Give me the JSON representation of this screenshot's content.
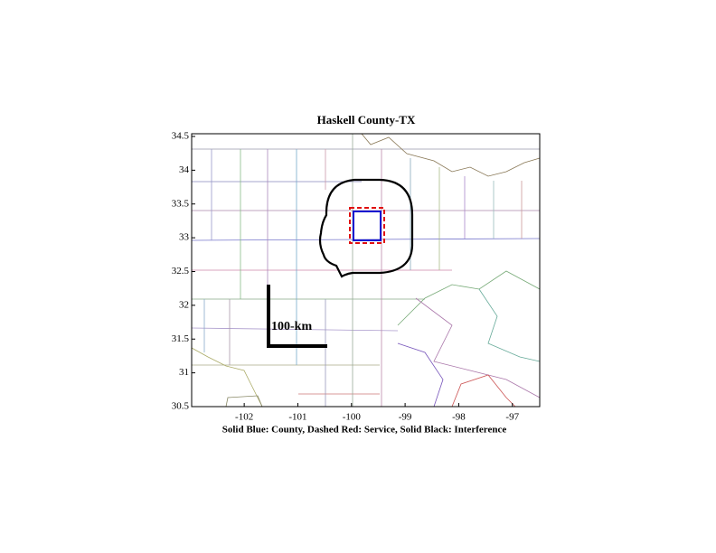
{
  "chart_data": {
    "type": "map",
    "title": "Haskell County-TX",
    "xlabel": "Solid Blue: County, Dashed Red: Service, Solid Black: Interference",
    "scale_label": "100-km",
    "xlim": [
      -102.98,
      -96.49
    ],
    "xticks": [
      -102,
      -101,
      -100,
      -99,
      -98,
      -97
    ],
    "ylim": [
      30.5,
      34.54
    ],
    "yticks": [
      30.5,
      31,
      31.5,
      32,
      32.5,
      33,
      33.5,
      34,
      34.5
    ]
  }
}
